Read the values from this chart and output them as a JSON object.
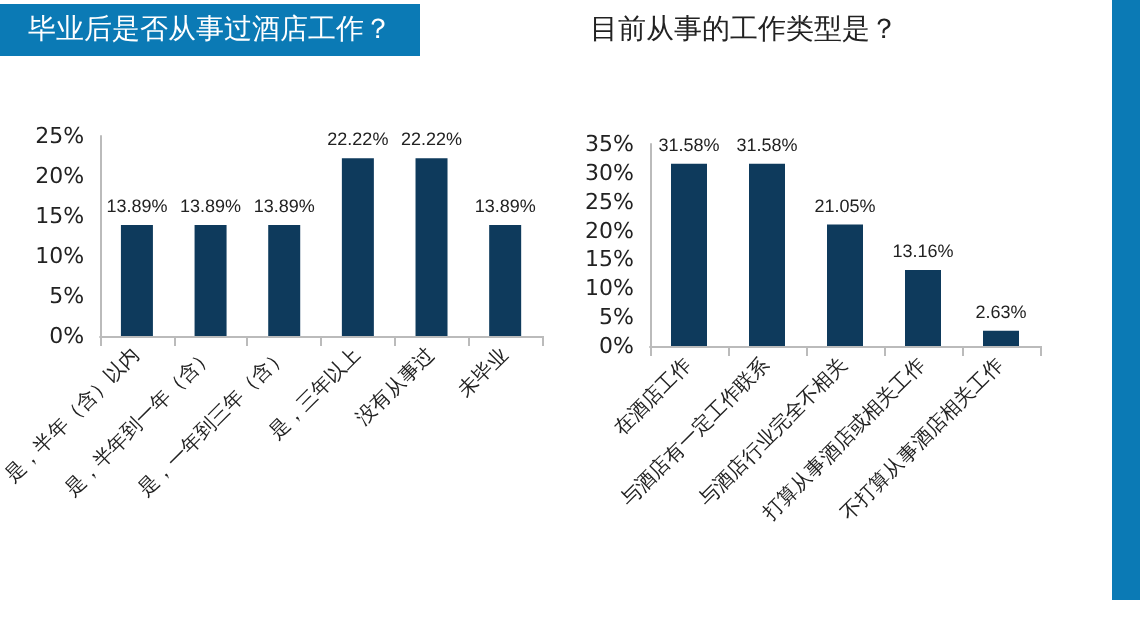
{
  "chart_data": [
    {
      "type": "bar",
      "title": "毕业后是否从事过酒店工作？",
      "categories": [
        "是，半年（含）以内",
        "是，半年到一年（含）",
        "是，一年到三年（含）",
        "是，三年以上",
        "没有从事过",
        "未毕业"
      ],
      "values": [
        13.89,
        13.89,
        13.89,
        22.22,
        22.22,
        13.89
      ],
      "value_labels": [
        "13.89%",
        "13.89%",
        "13.89%",
        "22.22%",
        "22.22%",
        "13.89%"
      ],
      "color": "#0e3a5c",
      "ylim": [
        0,
        25
      ],
      "yticks": [
        {
          "value": 0,
          "label": "0%"
        },
        {
          "value": 5,
          "label": "5%"
        },
        {
          "value": 10,
          "label": "10%"
        },
        {
          "value": 15,
          "label": "15%"
        },
        {
          "value": 20,
          "label": "20%"
        },
        {
          "value": 25,
          "label": "25%"
        }
      ],
      "grid": false
    },
    {
      "type": "bar",
      "title": "目前从事的工作类型是？",
      "categories": [
        "在酒店工作",
        "与酒店有一定工作联系",
        "与酒店行业完全不相关",
        "打算从事酒店或相关工作",
        "不打算从事酒店相关工作"
      ],
      "values": [
        31.58,
        31.58,
        21.05,
        13.16,
        2.63
      ],
      "value_labels": [
        "31.58%",
        "31.58%",
        "21.05%",
        "13.16%",
        "2.63%"
      ],
      "color": "#0e3a5c",
      "ylim": [
        0,
        35
      ],
      "yticks": [
        {
          "value": 0,
          "label": "0%"
        },
        {
          "value": 5,
          "label": "5%"
        },
        {
          "value": 10,
          "label": "10%"
        },
        {
          "value": 15,
          "label": "15%"
        },
        {
          "value": 20,
          "label": "20%"
        },
        {
          "value": 25,
          "label": "25%"
        },
        {
          "value": 30,
          "label": "30%"
        },
        {
          "value": 35,
          "label": "35%"
        }
      ],
      "grid": false
    }
  ]
}
